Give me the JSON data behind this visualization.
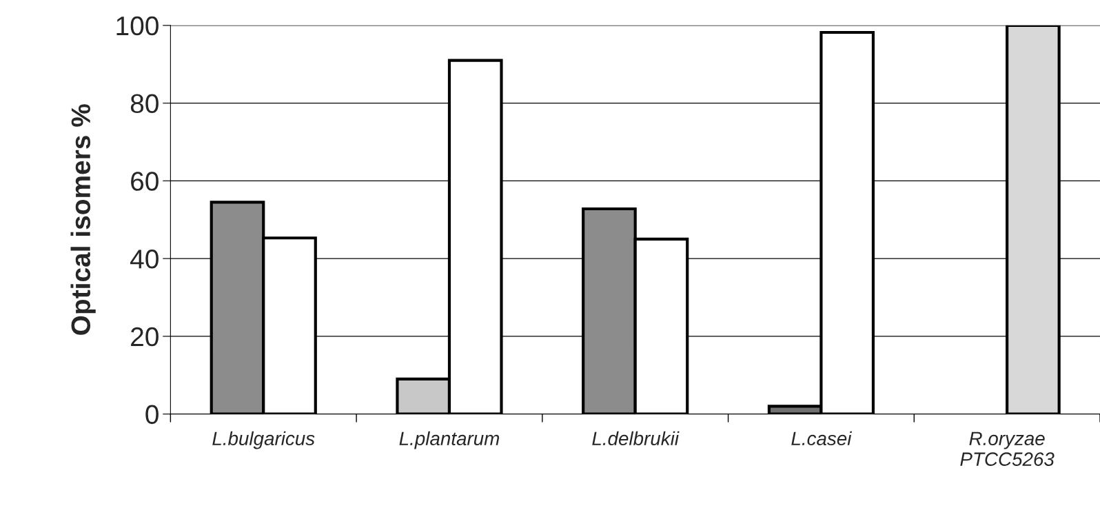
{
  "chart_data": {
    "type": "bar",
    "ylabel": "Optical isomers %",
    "categories": [
      "L.bulgaricus",
      "L.plantarum",
      "L.delbrukii",
      "L.casei",
      "R.oryzae\nPTCC5263"
    ],
    "series": [
      {
        "colors": [
          "#8c8c8c",
          "#c8c8c8",
          "#8c8c8c",
          "#707070",
          "#ffffff"
        ],
        "values": [
          54.5,
          9,
          52.8,
          2,
          null
        ]
      },
      {
        "colors": [
          "#ffffff",
          "#ffffff",
          "#ffffff",
          "#ffffff",
          "#d8d8d8"
        ],
        "values": [
          45.3,
          91,
          45,
          98.2,
          100
        ]
      }
    ],
    "ylim": [
      0,
      100
    ],
    "yticks": [
      0,
      20,
      40,
      60,
      80,
      100
    ],
    "grid": "y",
    "legend": false
  }
}
